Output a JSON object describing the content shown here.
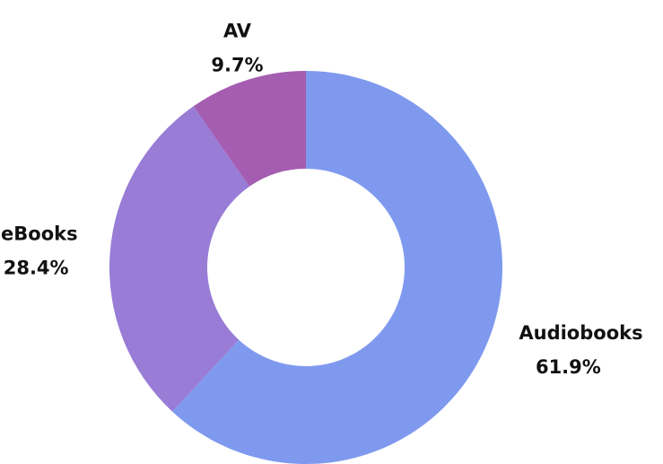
{
  "chart_data": {
    "type": "donut",
    "categories": [
      "Audiobooks",
      "eBooks",
      "AV"
    ],
    "values": [
      61.9,
      28.4,
      9.7
    ],
    "value_labels": [
      "61.9%",
      "28.4%",
      "9.7%"
    ],
    "colors": [
      "#7f99ee",
      "#987cd6",
      "#a45db0"
    ]
  }
}
